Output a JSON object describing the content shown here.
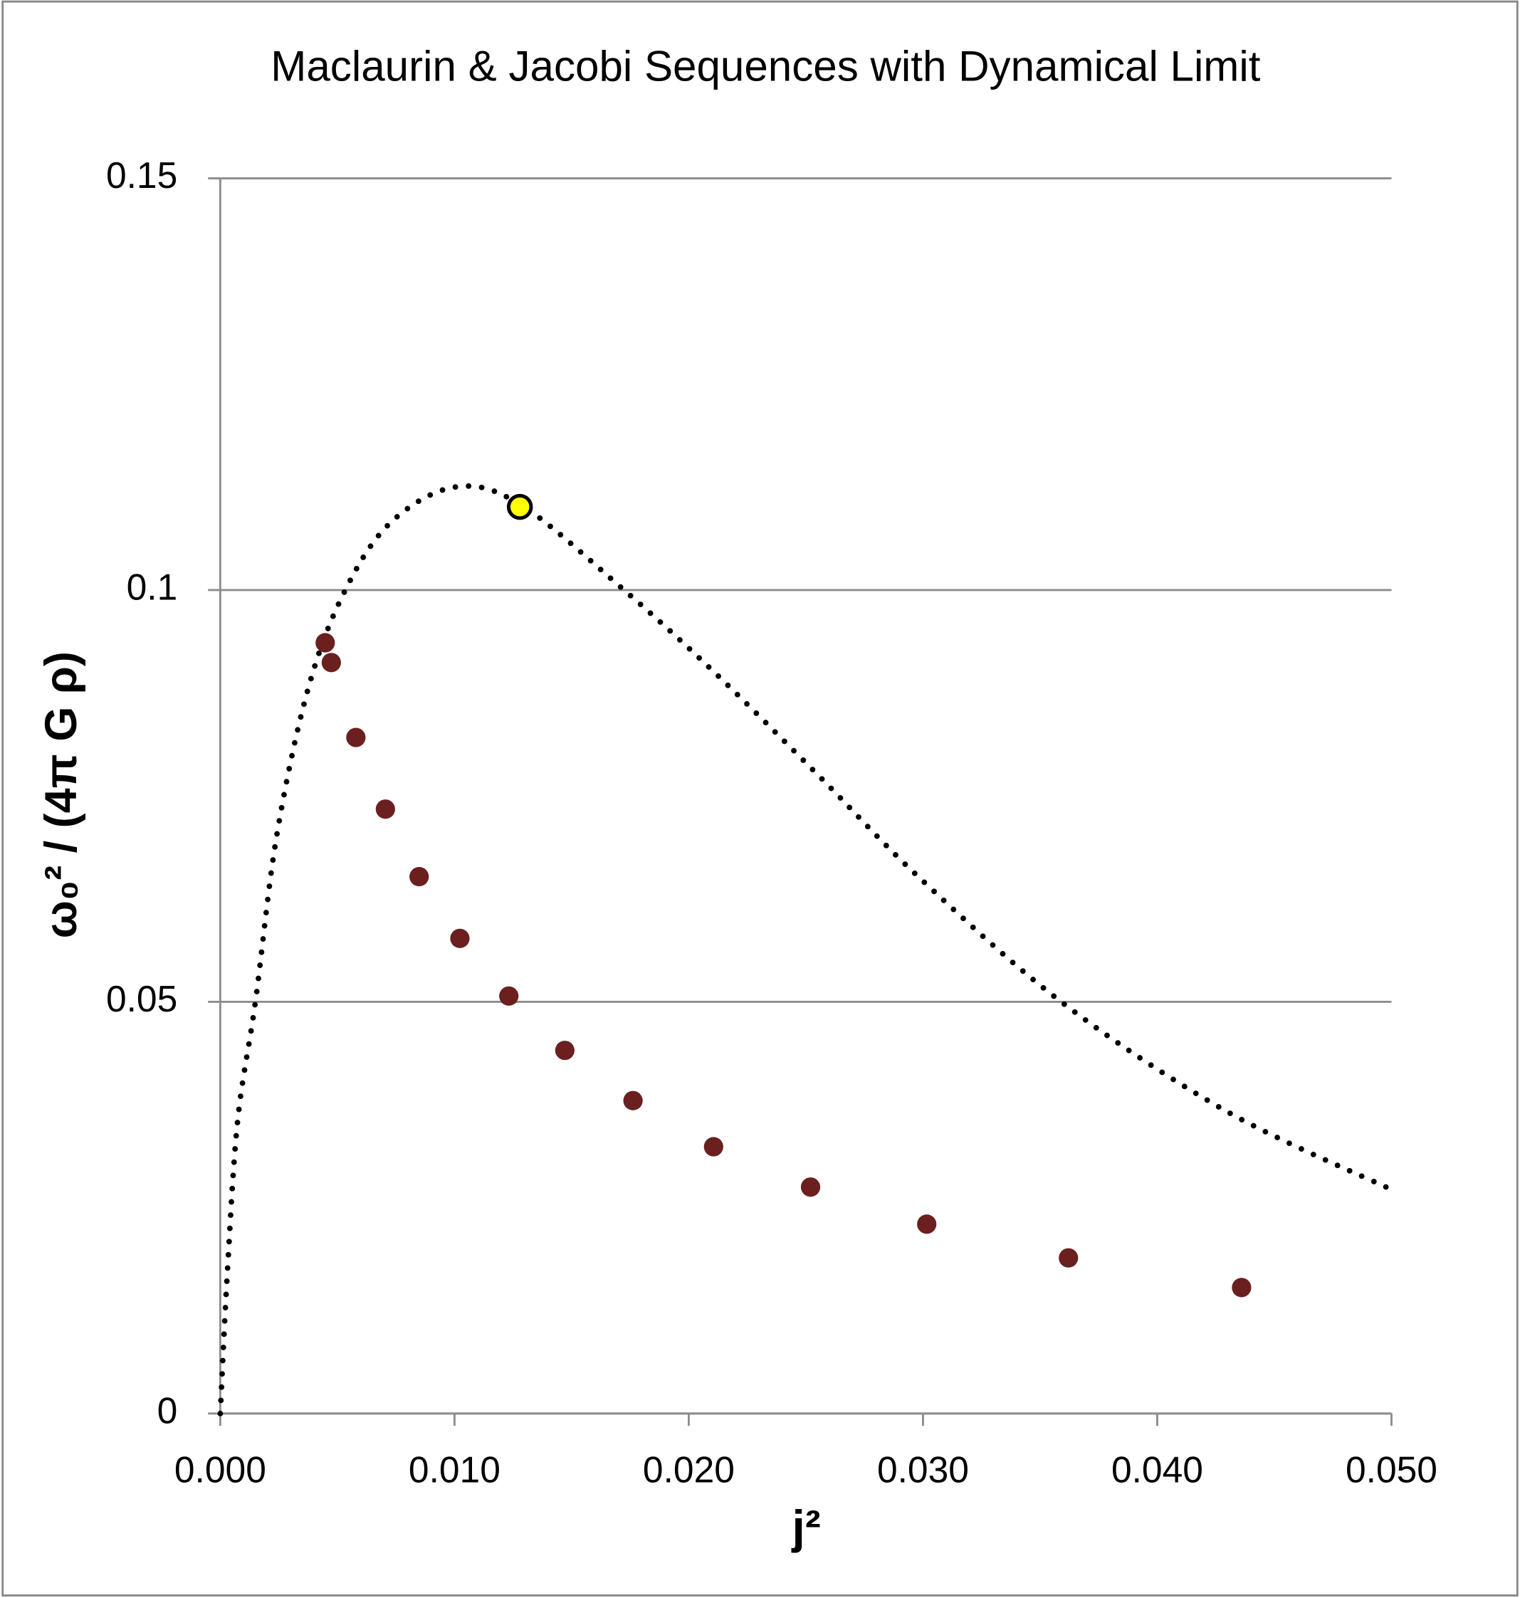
{
  "chart_data": {
    "type": "scatter",
    "title": "Maclaurin & Jacobi Sequences with Dynamical Limit",
    "x_label": "j²",
    "y_label": "ω₀² / (4π G ρ)",
    "xlim": [
      0,
      0.05
    ],
    "ylim": [
      0,
      0.15
    ],
    "xticks": [
      {
        "value": 0,
        "label": "0.000"
      },
      {
        "value": 0.01,
        "label": "0.010"
      },
      {
        "value": 0.02,
        "label": "0.020"
      },
      {
        "value": 0.03,
        "label": "0.030"
      },
      {
        "value": 0.04,
        "label": "0.040"
      },
      {
        "value": 0.05,
        "label": "0.050"
      }
    ],
    "yticks": [
      0,
      0.05,
      0.1,
      0.15
    ],
    "grid": true,
    "series": [
      {
        "mode": "dotted-line",
        "color": "#000000",
        "x": [
          0,
          0.0003,
          0.00074,
          0.0015,
          0.0024,
          0.0037,
          0.0052,
          0.0072,
          0.01,
          0.0128,
          0.0172,
          0.0211,
          0.0255,
          0.0298,
          0.0359,
          0.0429,
          0.05
        ],
        "values": [
          0,
          0.017,
          0.0355,
          0.05,
          0.07,
          0.0875,
          0.0992,
          0.108,
          0.1125,
          0.1104,
          0.1001,
          0.09,
          0.0776,
          0.0652,
          0.05,
          0.0368,
          0.0272
        ]
      },
      {
        "mode": "markers",
        "color": "#6b1f1f",
        "x": [
          0.00448,
          0.00474,
          0.00579,
          0.00705,
          0.00849,
          0.01023,
          0.01232,
          0.01471,
          0.01762,
          0.02106,
          0.0252,
          0.03016,
          0.03621,
          0.0436
        ],
        "values": [
          0.0936,
          0.0912,
          0.0821,
          0.0734,
          0.0652,
          0.0577,
          0.0507,
          0.0441,
          0.038,
          0.0324,
          0.0275,
          0.023,
          0.0189,
          0.0153
        ]
      },
      {
        "mode": "markers",
        "color": "#ffff00",
        "x": [
          0.01279
        ],
        "values": [
          0.1101
        ]
      }
    ]
  }
}
